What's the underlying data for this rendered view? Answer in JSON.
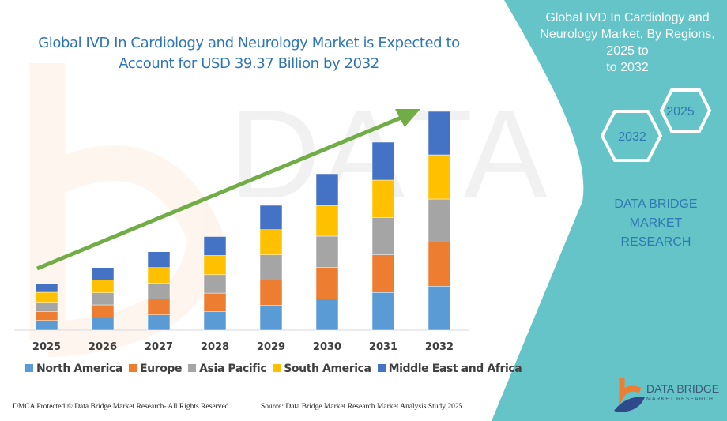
{
  "colors": {
    "panel": "#64c4c8",
    "title": "#2e75b6",
    "arrow": "#70ad47"
  },
  "panel": {
    "title_line1": "Global IVD In Cardiology and",
    "title_line2": "Neurology Market, By Regions, 2025 to",
    "title_line3": "to 2032",
    "hex_years": [
      "2025",
      "2032"
    ],
    "brand_line1": "DATA BRIDGE MARKET",
    "brand_line2": "RESEARCH",
    "logo_text": "DATA BRIDGE",
    "logo_sub": "MARKET RESEARCH"
  },
  "footer": {
    "left": "DMCA Protected © Data Bridge Market Research-  All Rights Reserved.",
    "right": "Source:  Data Bridge Market Research  Market Analysis Study 2025"
  },
  "chart_data": {
    "type": "bar",
    "stacked": true,
    "title_line1": "Global IVD In Cardiology and Neurology Market is Expected to",
    "title_line2": "Account for USD 39.37 Billion by 2032",
    "categories": [
      "2025",
      "2026",
      "2027",
      "2028",
      "2029",
      "2030",
      "2031",
      "2032"
    ],
    "y_axis_shown": false,
    "grid": false,
    "legend_position": "bottom",
    "value_note_units": "relative (no axis printed)",
    "series": [
      {
        "name": "North America",
        "color": "#5b9bd5",
        "values": [
          12.3,
          15.7,
          19.3,
          23.3,
          31.3,
          39.3,
          47.7,
          55.7
        ]
      },
      {
        "name": "Europe",
        "color": "#ed7d31",
        "values": [
          11.4,
          16.3,
          20.4,
          23.6,
          32.4,
          40.0,
          47.6,
          56.0
        ]
      },
      {
        "name": "Asia Pacific",
        "color": "#a5a5a5",
        "values": [
          11.6,
          15.3,
          19.6,
          23.3,
          31.6,
          39.7,
          47.0,
          54.3
        ]
      },
      {
        "name": "South America",
        "color": "#ffc000",
        "values": [
          12.7,
          16.0,
          20.0,
          24.3,
          32.0,
          39.0,
          47.7,
          56.0
        ]
      },
      {
        "name": "Middle East and Africa",
        "color": "#4472c4",
        "values": [
          11.3,
          16.0,
          20.0,
          24.0,
          30.7,
          40.0,
          48.0,
          55.0
        ]
      }
    ]
  }
}
